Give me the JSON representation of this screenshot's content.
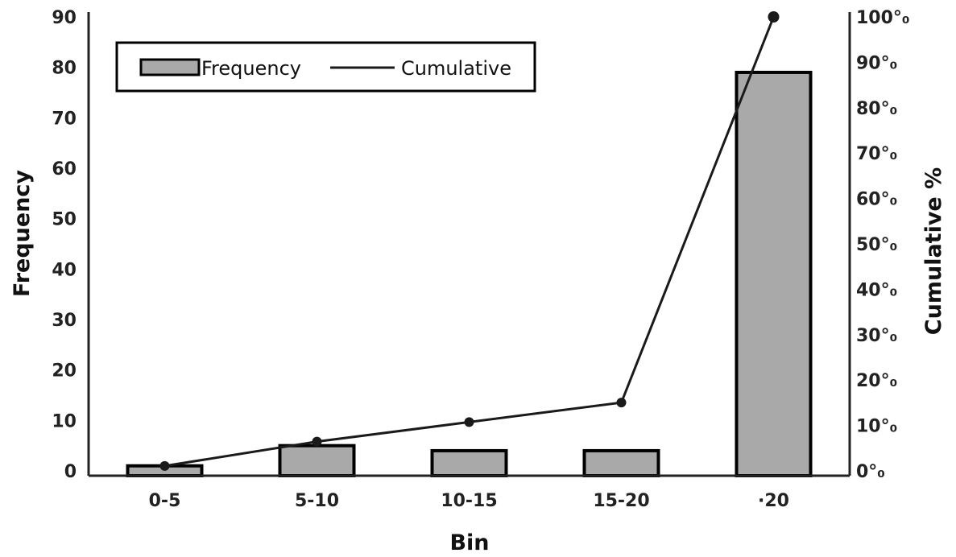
{
  "chart_data": {
    "type": "bar",
    "categories": [
      "0-5",
      "5-10",
      "10-15",
      "15-20",
      "·20"
    ],
    "series": [
      {
        "name": "Frequency",
        "type": "bar",
        "axis": "left",
        "values": [
          1,
          5,
          4,
          4,
          79
        ]
      },
      {
        "name": "Cumulative",
        "type": "line",
        "axis": "right",
        "values": [
          1.08,
          6.45,
          10.75,
          15.05,
          100
        ]
      }
    ],
    "xlabel": "Bin",
    "ylabel": "Frequency",
    "y2label": "Cumulative %",
    "ylim": [
      0,
      90
    ],
    "y2lim": [
      0,
      100
    ],
    "yticks": [
      "0",
      "10",
      "20",
      "30",
      "40",
      "50",
      "60",
      "70",
      "80",
      "90"
    ],
    "y2ticks": [
      "0°₀",
      "10°₀",
      "20°₀",
      "30°₀",
      "40°₀",
      "50°₀",
      "60°₀",
      "70°₀",
      "80°₀",
      "90°₀",
      "100°₀"
    ],
    "legend": {
      "position": "top-left",
      "items": [
        "Frequency",
        "Cumulative"
      ]
    },
    "grid": false,
    "colors": {
      "bar_fill": "#a9a9a9",
      "bar_stroke": "#000000",
      "line": "#1a1a1a",
      "axis": "#222222"
    }
  }
}
